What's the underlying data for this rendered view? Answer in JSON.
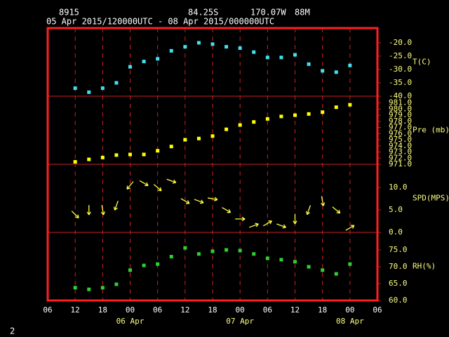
{
  "header": {
    "station": "8915",
    "lat": "84.25S",
    "lon": "170.07W",
    "elev": "88M",
    "period": "05 Apr 2015/120000UTC - 08 Apr 2015/000000UTC"
  },
  "footer": "2",
  "chart_data": {
    "type": "multi-panel",
    "x": [
      12,
      15,
      18,
      21,
      24,
      27,
      30,
      33,
      36,
      39,
      42,
      45,
      48,
      51,
      54,
      57,
      60,
      63,
      66,
      69,
      72
    ],
    "xlim": [
      6,
      78
    ],
    "xticks": [
      {
        "value": 6,
        "label": "06"
      },
      12,
      18,
      {
        "value": 24,
        "label": "00"
      },
      {
        "value": 30,
        "label": "06"
      },
      {
        "value": 36,
        "label": "12"
      },
      {
        "value": 42,
        "label": "18"
      },
      {
        "value": 48,
        "label": "00"
      },
      {
        "value": 54,
        "label": "06"
      },
      {
        "value": 60,
        "label": "12"
      },
      {
        "value": 66,
        "label": "18"
      },
      {
        "value": 72,
        "label": "00"
      },
      {
        "value": 78,
        "label": "06"
      }
    ],
    "date_labels": [
      {
        "value": 24,
        "label": "06 Apr"
      },
      {
        "value": 48,
        "label": "07 Apr"
      },
      {
        "value": 72,
        "label": "08 Apr"
      }
    ],
    "panels": [
      {
        "type": "scatter",
        "ylabel": "T(C)",
        "color": "#40e0f0",
        "ylim": [
          -40,
          -14.5
        ],
        "yticks": [
          {
            "value": -40,
            "label": "-40.0"
          },
          {
            "value": -35,
            "label": "-35.0"
          },
          {
            "value": -30,
            "label": "-30.0"
          },
          {
            "value": -25,
            "label": "-25.0"
          },
          {
            "value": -20,
            "label": "-20.0"
          }
        ],
        "values": [
          -37,
          -38.5,
          -37,
          -35,
          -29,
          -27,
          -26,
          -23,
          -21.5,
          -20,
          -20.5,
          -21.5,
          -22,
          -23.5,
          -25.5,
          -25.5,
          -24.5,
          -28,
          -30.5,
          -31,
          -28.5
        ]
      },
      {
        "type": "scatter",
        "ylabel": "Pre (mb)",
        "color": "#ffff00",
        "ylim": [
          971,
          982.1
        ],
        "yticks": [
          {
            "value": 971,
            "label": "971.0"
          },
          {
            "value": 972,
            "label": "972.0"
          },
          {
            "value": 973,
            "label": "973.0"
          },
          {
            "value": 974,
            "label": "974.0"
          },
          {
            "value": 975,
            "label": "975.0"
          },
          {
            "value": 976,
            "label": "976.0"
          },
          {
            "value": 977,
            "label": "977.0"
          },
          {
            "value": 978,
            "label": "978.0"
          },
          {
            "value": 979,
            "label": "979.0"
          },
          {
            "value": 980,
            "label": "980.0"
          },
          {
            "value": 981,
            "label": "981.0"
          }
        ],
        "values": [
          971.4,
          971.8,
          972.1,
          972.5,
          972.6,
          972.6,
          973.2,
          973.9,
          975.0,
          975.2,
          975.6,
          976.7,
          977.4,
          977.9,
          978.4,
          978.8,
          979.0,
          979.2,
          979.5,
          980.3,
          980.7
        ]
      },
      {
        "type": "vector",
        "ylabel": "SPD(MPS)",
        "color": "#ffff40",
        "ylim": [
          0,
          15.2
        ],
        "yticks": [
          {
            "value": 0,
            "label": "0.0"
          },
          {
            "value": 5,
            "label": "5.0"
          },
          {
            "value": 10,
            "label": "10.0"
          }
        ],
        "values": [
          4,
          5,
          5,
          6,
          10.5,
          11,
          10,
          11.5,
          7,
          7,
          7.5,
          5,
          3,
          1.5,
          2,
          1.5,
          3,
          5,
          7,
          5,
          1
        ],
        "directions": [
          135,
          180,
          170,
          200,
          220,
          120,
          130,
          110,
          120,
          110,
          100,
          120,
          90,
          70,
          60,
          110,
          180,
          200,
          170,
          130,
          60
        ]
      },
      {
        "type": "scatter",
        "ylabel": "RH(%)",
        "color": "#30d030",
        "ylim": [
          60,
          80.2
        ],
        "yticks": [
          {
            "value": 60,
            "label": "60.0"
          },
          {
            "value": 65,
            "label": "65.0"
          },
          {
            "value": 70,
            "label": "70.0"
          },
          {
            "value": 75,
            "label": "75.0"
          }
        ],
        "values": [
          63.8,
          63.3,
          63.8,
          64.8,
          69,
          70.4,
          70.8,
          73,
          75.6,
          73.8,
          74.6,
          75,
          74.8,
          73.8,
          72.5,
          72.1,
          71.5,
          70,
          69,
          67.9,
          70.8
        ]
      }
    ]
  }
}
